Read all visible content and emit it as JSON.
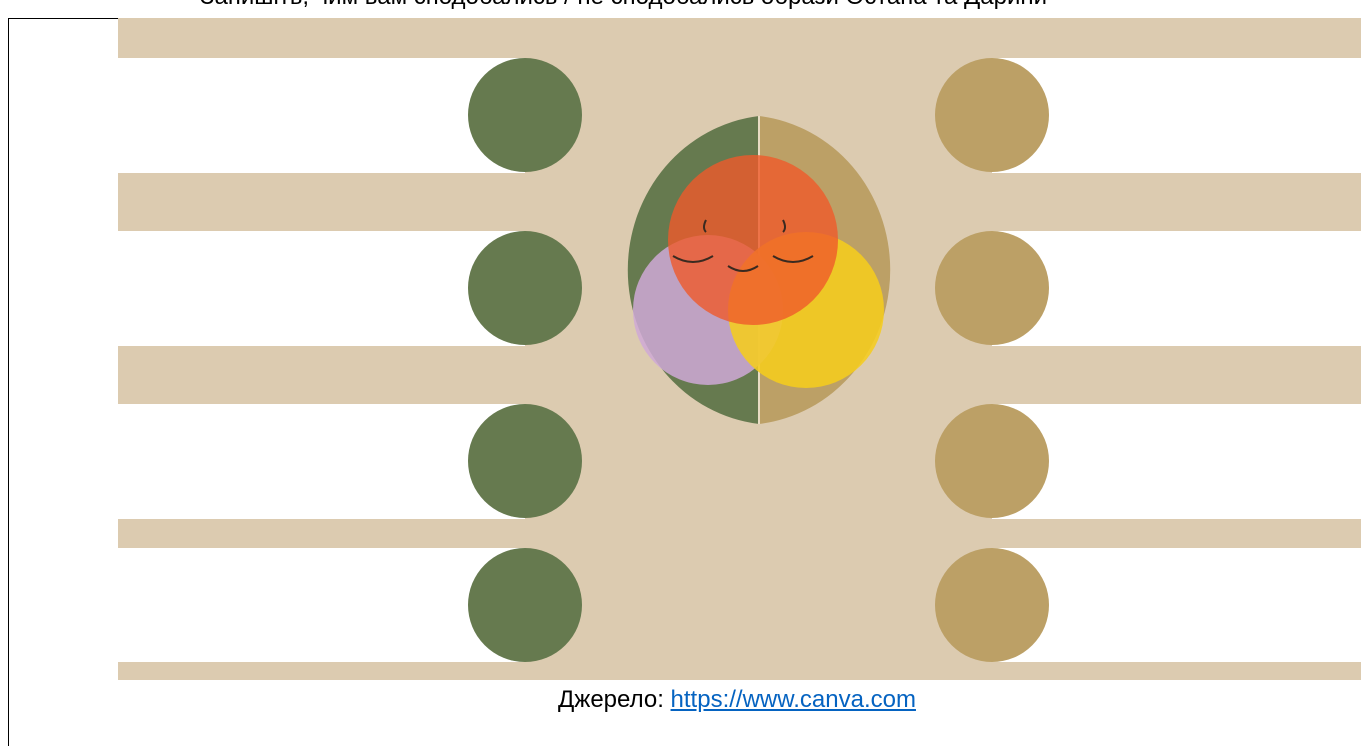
{
  "document": {
    "top_text": "Запишіть, чим вам сподобались / не сподобались образи Остапа та Дарини",
    "caption": {
      "label": "Джерело:",
      "link": "https://www.canva.com"
    }
  }
}
